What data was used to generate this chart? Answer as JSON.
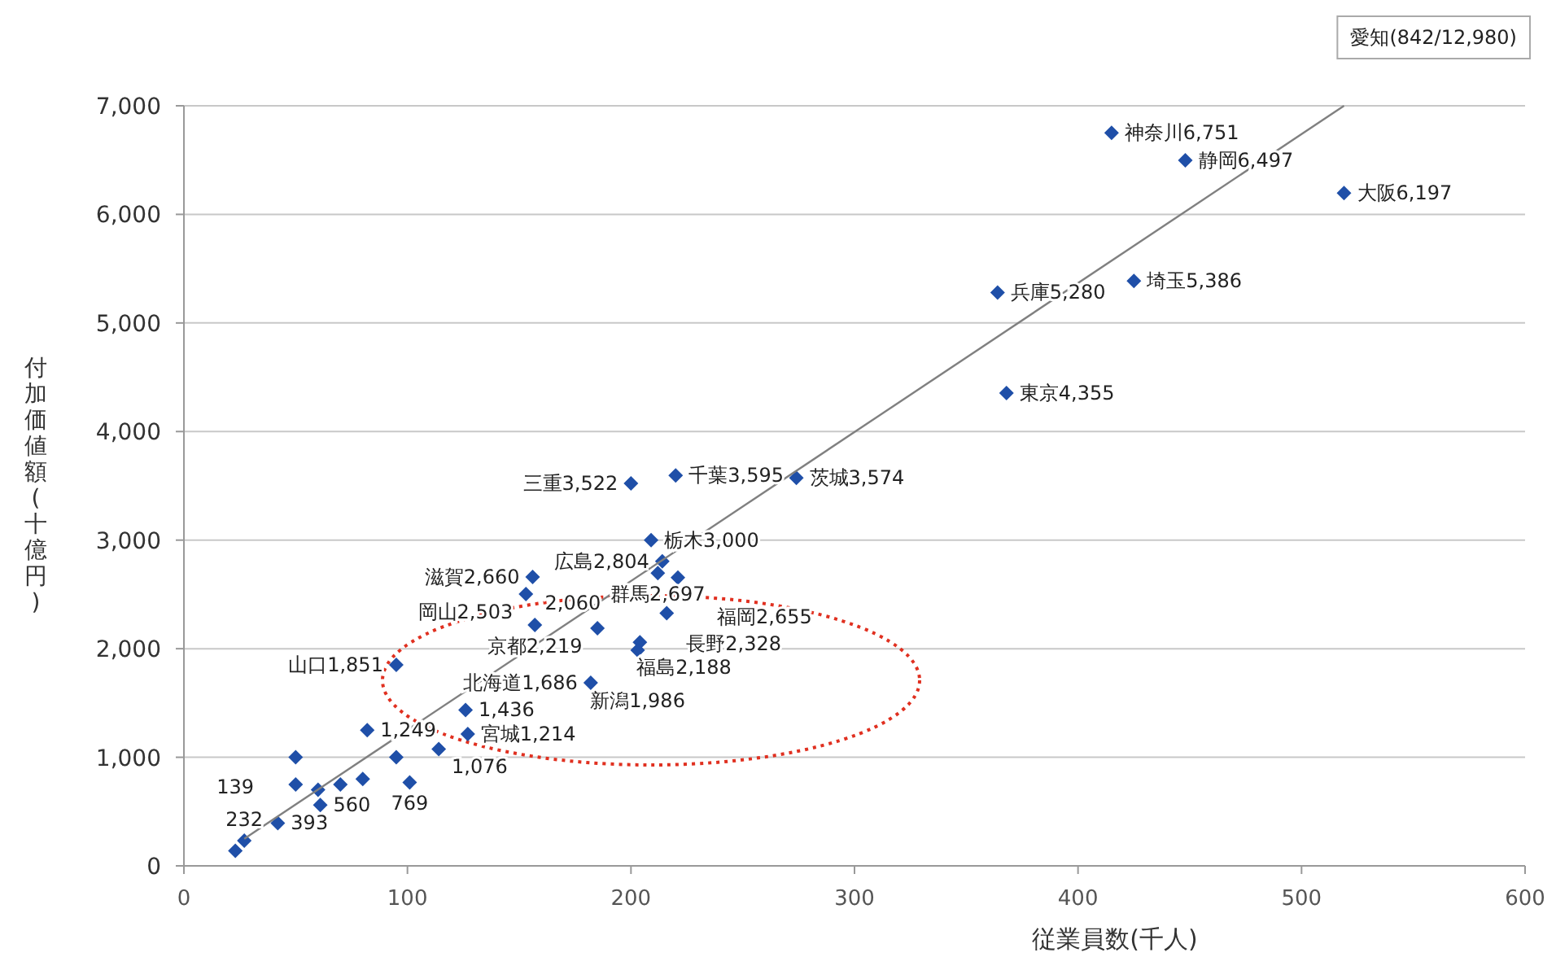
{
  "chart_data": {
    "type": "scatter",
    "xlabel": "従業員数(千人)",
    "ylabel": "付加価値額(十億円)",
    "xlim": [
      0,
      600
    ],
    "ylim": [
      0,
      7000
    ],
    "xticks": [
      0,
      100,
      200,
      300,
      400,
      500,
      600
    ],
    "yticks": [
      0,
      {
        "value": 1000,
        "label": "1,000"
      },
      {
        "value": 2000,
        "label": "2,000"
      },
      {
        "value": 3000,
        "label": "3,000"
      },
      {
        "value": 4000,
        "label": "4,000"
      },
      {
        "value": 5000,
        "label": "5,000"
      },
      {
        "value": 6000,
        "label": "6,000"
      },
      {
        "value": 7000,
        "label": "7,000"
      }
    ],
    "grid": "y",
    "marker": "diamond",
    "series": [
      {
        "color": "#1f4fa8",
        "x": [
          415,
          448,
          519,
          425,
          364,
          368,
          220,
          274,
          200,
          209,
          214,
          212,
          156,
          221,
          153,
          216,
          157,
          185,
          204,
          203,
          95,
          182,
          126,
          82,
          127,
          114,
          95,
          50,
          101,
          50,
          70,
          61,
          42,
          27,
          23,
          60,
          80
        ],
        "values": [
          6751,
          6497,
          6197,
          5386,
          5280,
          4355,
          3595,
          3574,
          3522,
          3000,
          2804,
          2697,
          2660,
          2655,
          2503,
          2328,
          2219,
          2188,
          2060,
          1986,
          1851,
          1686,
          1436,
          1249,
          1214,
          1076,
          1000,
          1000,
          769,
          750,
          750,
          560,
          393,
          232,
          139,
          700,
          800
        ]
      },
      {
        "type": "line",
        "color": "#808080",
        "marker": "none",
        "x": [
          27,
          519
        ],
        "values": [
          250,
          7000
        ]
      }
    ],
    "annotations": [
      {
        "text": "神奈川6,751",
        "x": 415,
        "y": 6751
      },
      {
        "text": "静岡6,497",
        "x": 448,
        "y": 6497
      },
      {
        "text": "大阪6,197",
        "x": 519,
        "y": 6197
      },
      {
        "text": "埼玉5,386",
        "x": 425,
        "y": 5386
      },
      {
        "text": "兵庫5,280",
        "x": 364,
        "y": 5280
      },
      {
        "text": "東京4,355",
        "x": 368,
        "y": 4355
      },
      {
        "text": "千葉3,595",
        "x": 220,
        "y": 3595
      },
      {
        "text": "茨城3,574",
        "x": 274,
        "y": 3574
      },
      {
        "text": "三重3,522",
        "x": 200,
        "y": 3522
      },
      {
        "text": "栃木3,000",
        "x": 209,
        "y": 3000
      },
      {
        "text": "広島2,804",
        "x": 214,
        "y": 2804
      },
      {
        "text": "群馬2,697",
        "x": 212,
        "y": 2697
      },
      {
        "text": "滋賀2,660",
        "x": 156,
        "y": 2660
      },
      {
        "text": "福岡2,655",
        "x": 221,
        "y": 2655
      },
      {
        "text": "岡山2,503",
        "x": 153,
        "y": 2503
      },
      {
        "text": "長野2,328",
        "x": 216,
        "y": 2328
      },
      {
        "text": "京都2,219",
        "x": 157,
        "y": 2219
      },
      {
        "text": "福島2,188",
        "x": 185,
        "y": 2188
      },
      {
        "text": "2,060",
        "x": 204,
        "y": 2060
      },
      {
        "text": "新潟1,986",
        "x": 203,
        "y": 1986
      },
      {
        "text": "山口1,851",
        "x": 95,
        "y": 1851
      },
      {
        "text": "北海道1,686",
        "x": 182,
        "y": 1686
      },
      {
        "text": "1,436",
        "x": 126,
        "y": 1436
      },
      {
        "text": "1,249",
        "x": 82,
        "y": 1249
      },
      {
        "text": "宮城1,214",
        "x": 127,
        "y": 1214
      },
      {
        "text": "1,076",
        "x": 114,
        "y": 1076
      },
      {
        "text": "769",
        "x": 101,
        "y": 769
      },
      {
        "text": "560",
        "x": 61,
        "y": 560
      },
      {
        "text": "393",
        "x": 42,
        "y": 393
      },
      {
        "text": "232",
        "x": 27,
        "y": 232
      },
      {
        "text": "139",
        "x": 23,
        "y": 139
      },
      "愛知(842/12,980)"
    ]
  }
}
